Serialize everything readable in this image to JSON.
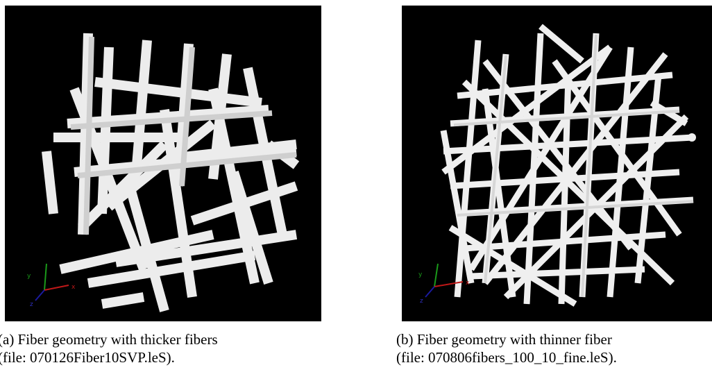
{
  "figure": {
    "panels": [
      {
        "caption_line1": "(a) Fiber geometry with thicker fibers",
        "caption_line2": "(file: 070126Fiber10SVP.leS).",
        "axis_labels": [
          "x",
          "y",
          "z"
        ]
      },
      {
        "caption_line1": "(b) Fiber geometry with thinner fiber",
        "caption_line2": "(file: 070806fibers_100_10_fine.leS).",
        "axis_labels": [
          "x",
          "y",
          "z"
        ]
      }
    ]
  }
}
